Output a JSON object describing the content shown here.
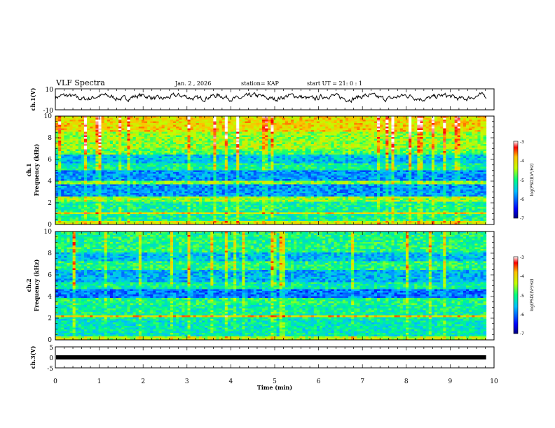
{
  "header": {
    "title": "VLF Spectra",
    "date": "Jan. 2 , 2026",
    "station": "station= KAP",
    "start": "start UT =  21: 0  : 1"
  },
  "chart_data": [
    {
      "type": "line",
      "panel": "ch1-waveform",
      "ylabel": "ch.1(V)",
      "ylim": [
        -10,
        10
      ],
      "yticks": [
        "10",
        "-10"
      ],
      "xlim": [
        0,
        10
      ],
      "series": [
        {
          "name": "ch.1",
          "values": "noisy waveform around +2 V, amplitude about ±5 V, from t=0 to ~9.8 min"
        }
      ]
    },
    {
      "type": "heatmap",
      "panel": "ch1-spectrogram",
      "ylabel": "ch.1\nFrequency (kHz)",
      "ylabel_lines": [
        "ch.1",
        "Frequency (kHz)"
      ],
      "ylim": [
        0,
        10
      ],
      "yticks": [
        "0",
        "2",
        "4",
        "6",
        "8",
        "10"
      ],
      "xlim": [
        0,
        9.82
      ],
      "colorbar": {
        "label": "log(PSD)(V²/Hz)",
        "range": [
          -7,
          -3
        ],
        "ticks": [
          "-3",
          "-4",
          "-5",
          "-6",
          "-7"
        ]
      }
    },
    {
      "type": "heatmap",
      "panel": "ch2-spectrogram",
      "ylabel_lines": [
        "ch.2",
        "Frequency (kHz)"
      ],
      "ylim": [
        0,
        10
      ],
      "yticks": [
        "0",
        "2",
        "4",
        "6",
        "8",
        "10"
      ],
      "xlim": [
        0,
        9.82
      ],
      "colorbar": {
        "label": "log(PSD)(V²/Hz)",
        "range": [
          -7,
          -3
        ],
        "ticks": [
          "-3",
          "-4",
          "-5",
          "-6",
          "-7"
        ]
      }
    },
    {
      "type": "line",
      "panel": "ch3-waveform",
      "ylabel": "ch.3(V)",
      "ylim": [
        -5,
        5
      ],
      "yticks": [
        "5",
        "0",
        "-5"
      ],
      "series": [
        {
          "name": "ch.3",
          "values": "flat thick band near 0 V from t=0 to ~9.8 min"
        }
      ]
    }
  ],
  "xaxis": {
    "label": "Time (min)",
    "ticks": [
      "0",
      "1",
      "2",
      "3",
      "4",
      "5",
      "6",
      "7",
      "8",
      "9",
      "10"
    ]
  }
}
